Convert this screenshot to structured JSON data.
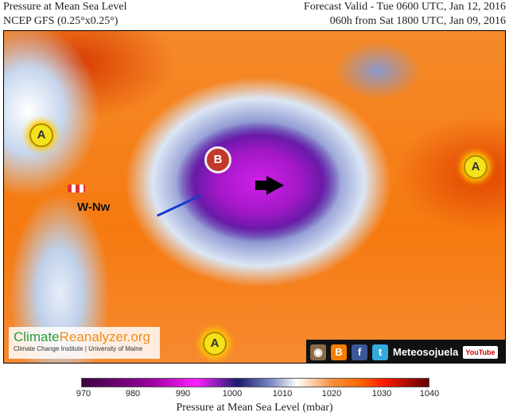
{
  "header": {
    "title": "Pressure at Mean Sea Level",
    "model": "NCEP GFS (0.25°x0.25°)",
    "valid": "Forecast Valid - Tue 0600 UTC, Jan 12, 2016",
    "run": "060h from Sat 1800 UTC, Jan 09, 2016"
  },
  "map": {
    "high_label": "A",
    "low_label": "B",
    "wind_label": "W-Nw"
  },
  "logo": {
    "part1": "Climate",
    "part2": "Reanalyzer.org",
    "subtitle": "Climate Change Institute | University of Maine"
  },
  "social": {
    "name": "Meteosojuela",
    "youtube": "YouTube"
  },
  "colorbar": {
    "ticks": [
      "970",
      "980",
      "990",
      "1000",
      "1010",
      "1020",
      "1030",
      "1040"
    ],
    "title": "Pressure at Mean Sea Level (mbar)",
    "min": 970,
    "max": 1040
  }
}
